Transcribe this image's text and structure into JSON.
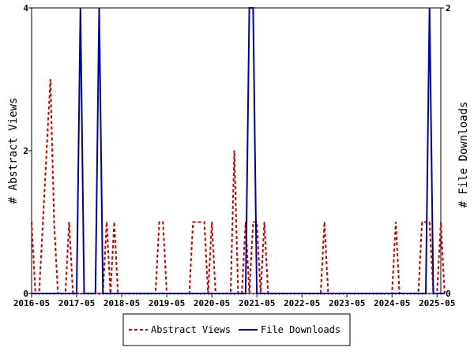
{
  "chart_data": {
    "type": "line",
    "xlabel": "",
    "ylabel": "# Abstract Views",
    "y2label": "# File Downloads",
    "ylim": [
      0,
      4
    ],
    "y2lim": [
      0,
      2
    ],
    "yticks": [
      "0",
      "2",
      "4"
    ],
    "y2ticks": [
      "0",
      "2"
    ],
    "xticks": [
      "2016-05",
      "2017-05",
      "2018-05",
      "2019-05",
      "2020-05",
      "2021-05",
      "2022-05",
      "2023-05",
      "2024-05",
      "2025-05"
    ],
    "xrange": [
      "2016-05",
      "2025-06"
    ],
    "grid": false,
    "legend_position": "bottom-center",
    "series": [
      {
        "name": "Abstract Views",
        "axis": "left",
        "color": "#cc0000",
        "style": "dashed",
        "points": [
          [
            "2016-05",
            1
          ],
          [
            "2016-06",
            0
          ],
          [
            "2016-07",
            0
          ],
          [
            "2016-08",
            1
          ],
          [
            "2016-09",
            2
          ],
          [
            "2016-10",
            3
          ],
          [
            "2016-11",
            1
          ],
          [
            "2016-12",
            0
          ],
          [
            "2017-01",
            0
          ],
          [
            "2017-02",
            0
          ],
          [
            "2017-03",
            1
          ],
          [
            "2017-04",
            0
          ],
          [
            "2017-05",
            0
          ],
          [
            "2017-06",
            0
          ],
          [
            "2017-07",
            0
          ],
          [
            "2017-08",
            0
          ],
          [
            "2017-09",
            0
          ],
          [
            "2017-10",
            0
          ],
          [
            "2017-11",
            0
          ],
          [
            "2017-12",
            0
          ],
          [
            "2018-01",
            1
          ],
          [
            "2018-02",
            0
          ],
          [
            "2018-03",
            1
          ],
          [
            "2018-04",
            0
          ],
          [
            "2018-05",
            0
          ],
          [
            "2018-06",
            0
          ],
          [
            "2018-07",
            0
          ],
          [
            "2018-08",
            0
          ],
          [
            "2018-09",
            0
          ],
          [
            "2018-10",
            0
          ],
          [
            "2018-11",
            0
          ],
          [
            "2018-12",
            0
          ],
          [
            "2019-01",
            0
          ],
          [
            "2019-02",
            0
          ],
          [
            "2019-03",
            1
          ],
          [
            "2019-04",
            1
          ],
          [
            "2019-05",
            0
          ],
          [
            "2019-06",
            0
          ],
          [
            "2019-07",
            0
          ],
          [
            "2019-08",
            0
          ],
          [
            "2019-09",
            0
          ],
          [
            "2019-10",
            0
          ],
          [
            "2019-11",
            0
          ],
          [
            "2019-12",
            1
          ],
          [
            "2020-01",
            1
          ],
          [
            "2020-02",
            1
          ],
          [
            "2020-03",
            1
          ],
          [
            "2020-04",
            0
          ],
          [
            "2020-05",
            1
          ],
          [
            "2020-06",
            0
          ],
          [
            "2020-07",
            0
          ],
          [
            "2020-08",
            0
          ],
          [
            "2020-09",
            0
          ],
          [
            "2020-10",
            0
          ],
          [
            "2020-11",
            2
          ],
          [
            "2020-12",
            0
          ],
          [
            "2021-01",
            0
          ],
          [
            "2021-02",
            1
          ],
          [
            "2021-03",
            0
          ],
          [
            "2021-04",
            1
          ],
          [
            "2021-05",
            1
          ],
          [
            "2021-06",
            0
          ],
          [
            "2021-07",
            1
          ],
          [
            "2021-08",
            0
          ],
          [
            "2021-09",
            0
          ],
          [
            "2021-10",
            0
          ],
          [
            "2021-11",
            0
          ],
          [
            "2021-12",
            0
          ],
          [
            "2022-01",
            0
          ],
          [
            "2022-02",
            0
          ],
          [
            "2022-03",
            0
          ],
          [
            "2022-04",
            0
          ],
          [
            "2022-05",
            0
          ],
          [
            "2022-06",
            0
          ],
          [
            "2022-07",
            0
          ],
          [
            "2022-08",
            0
          ],
          [
            "2022-09",
            0
          ],
          [
            "2022-10",
            0
          ],
          [
            "2022-11",
            1
          ],
          [
            "2022-12",
            0
          ],
          [
            "2023-01",
            0
          ],
          [
            "2023-02",
            0
          ],
          [
            "2023-03",
            0
          ],
          [
            "2023-04",
            0
          ],
          [
            "2023-05",
            0
          ],
          [
            "2023-06",
            0
          ],
          [
            "2023-07",
            0
          ],
          [
            "2023-08",
            0
          ],
          [
            "2023-09",
            0
          ],
          [
            "2023-10",
            0
          ],
          [
            "2023-11",
            0
          ],
          [
            "2023-12",
            0
          ],
          [
            "2024-01",
            0
          ],
          [
            "2024-02",
            0
          ],
          [
            "2024-03",
            0
          ],
          [
            "2024-04",
            0
          ],
          [
            "2024-05",
            0
          ],
          [
            "2024-06",
            1
          ],
          [
            "2024-07",
            0
          ],
          [
            "2024-08",
            0
          ],
          [
            "2024-09",
            0
          ],
          [
            "2024-10",
            0
          ],
          [
            "2024-11",
            0
          ],
          [
            "2024-12",
            0
          ],
          [
            "2025-01",
            1
          ],
          [
            "2025-02",
            1
          ],
          [
            "2025-03",
            1
          ],
          [
            "2025-04",
            0
          ],
          [
            "2025-05",
            0
          ],
          [
            "2025-06",
            1
          ],
          [
            "2025-07",
            0
          ]
        ]
      },
      {
        "name": "File Downloads",
        "axis": "right",
        "color": "#0000aa",
        "style": "solid",
        "points": [
          [
            "2016-05",
            0
          ],
          [
            "2017-05",
            0
          ],
          [
            "2017-06",
            2
          ],
          [
            "2017-07",
            0
          ],
          [
            "2017-08",
            0
          ],
          [
            "2017-09",
            0
          ],
          [
            "2017-10",
            0
          ],
          [
            "2017-11",
            2
          ],
          [
            "2017-12",
            0
          ],
          [
            "2018-01",
            0
          ],
          [
            "2020-12",
            0
          ],
          [
            "2021-01",
            0
          ],
          [
            "2021-02",
            0
          ],
          [
            "2021-03",
            2
          ],
          [
            "2021-04",
            2
          ],
          [
            "2021-05",
            0
          ],
          [
            "2021-06",
            0
          ],
          [
            "2025-02",
            0
          ],
          [
            "2025-03",
            2
          ],
          [
            "2025-04",
            0
          ],
          [
            "2025-07",
            0
          ]
        ]
      }
    ]
  }
}
